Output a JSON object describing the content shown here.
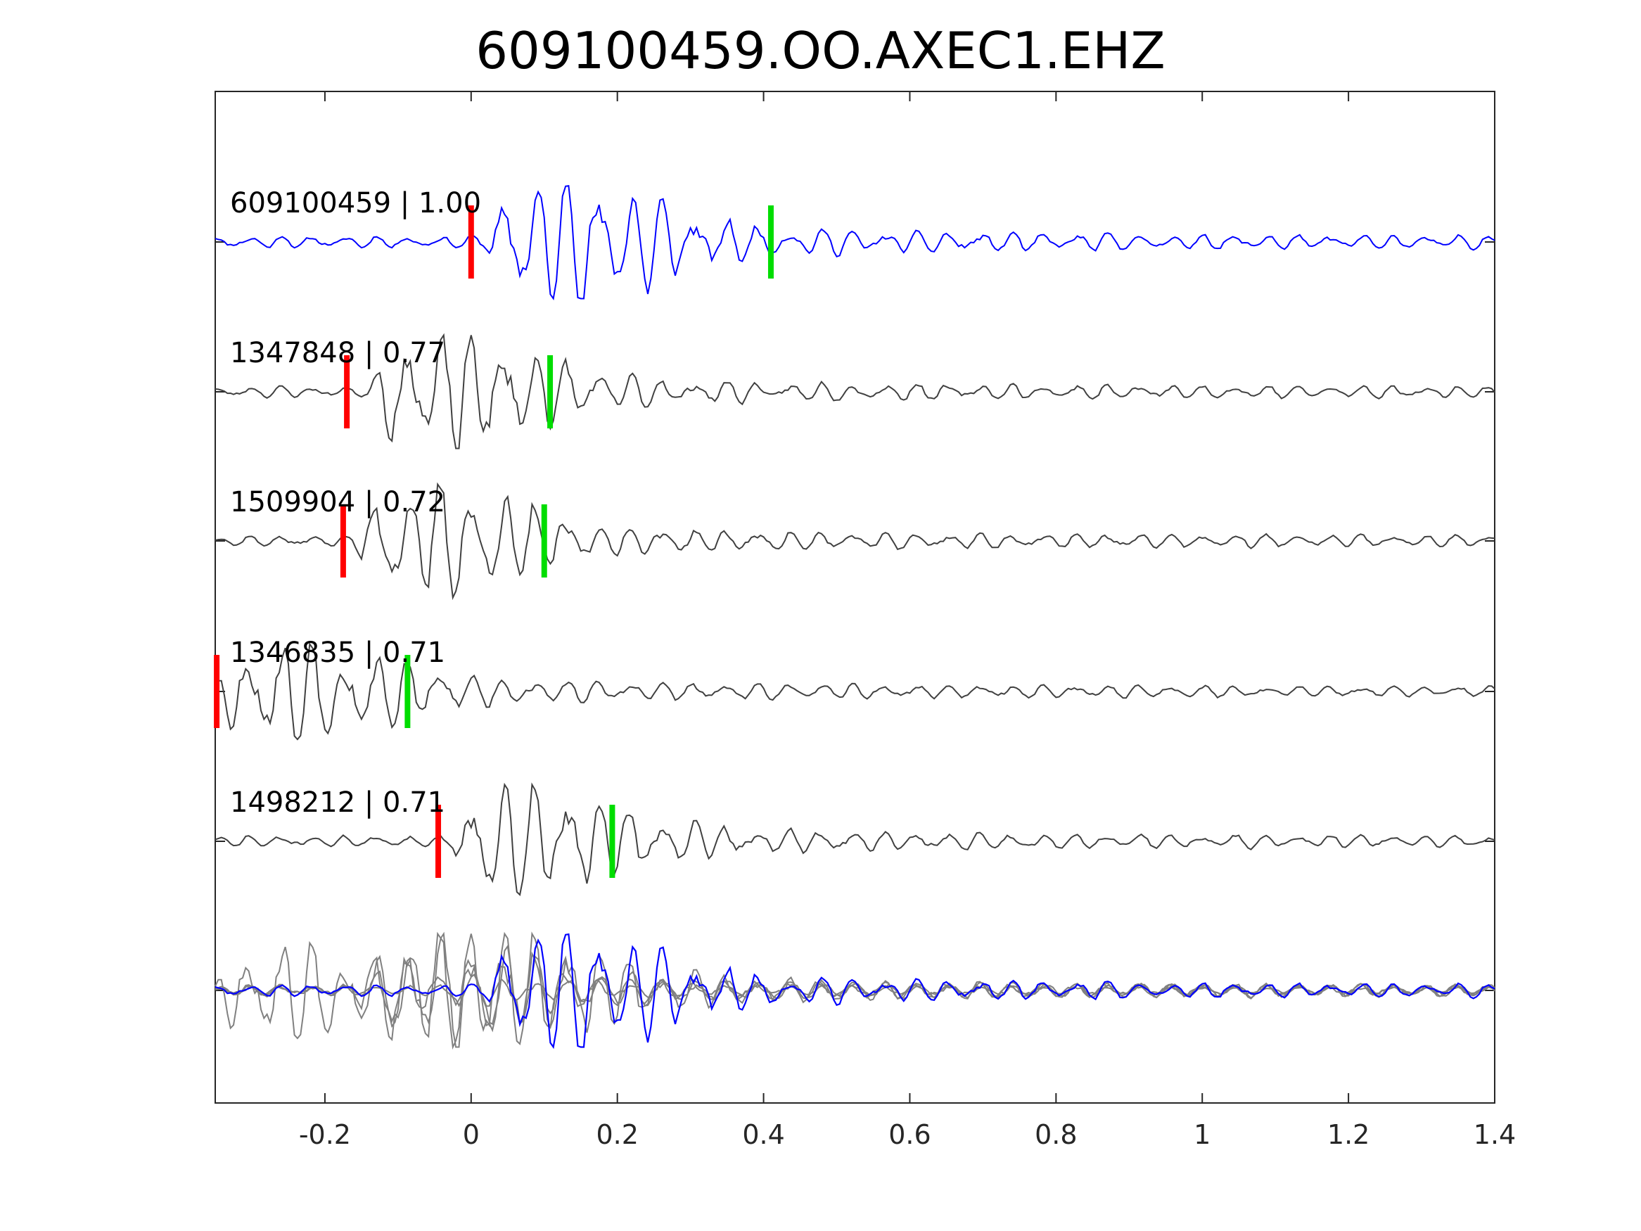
{
  "chart_data": {
    "type": "line",
    "title": "609100459.OO.AXEC1.EHZ",
    "xlabel": "",
    "ylabel": "",
    "xlim": [
      -0.35,
      1.4
    ],
    "xticks": [
      -0.2,
      0,
      0.2,
      0.4,
      0.6,
      0.8,
      1,
      1.2,
      1.4
    ],
    "xtick_labels": [
      "-0.2",
      "0",
      "0.2",
      "0.4",
      "0.6",
      "0.8",
      "1",
      "1.2",
      "1.4"
    ],
    "grid": false,
    "legend": "none",
    "colors": {
      "primary_trace": "#0000ff",
      "other_traces": "#404040",
      "overlay_traces": "#808080",
      "p_marker": "#ff0000",
      "s_marker": "#00dd00",
      "axes": "#262626"
    },
    "series": [
      {
        "name": "609100459",
        "label": "609100459 | 1.00",
        "event_id": "609100459",
        "correlation": 1.0,
        "primary": true,
        "p_pick": 0.0,
        "s_pick": 0.41,
        "signal_start": 0.02,
        "amp": 1.0,
        "seed": 11
      },
      {
        "name": "1347848",
        "label": "1347848 | 0.77",
        "event_id": "1347848",
        "correlation": 0.77,
        "primary": false,
        "p_pick": -0.17,
        "s_pick": 0.108,
        "signal_start": -0.14,
        "amp": 0.9,
        "seed": 23
      },
      {
        "name": "1509904",
        "label": "1509904 | 0.72",
        "event_id": "1509904",
        "correlation": 0.72,
        "primary": false,
        "p_pick": -0.175,
        "s_pick": 0.1,
        "signal_start": -0.16,
        "amp": 0.9,
        "seed": 37
      },
      {
        "name": "1346835",
        "label": "1346835 | 0.71",
        "event_id": "1346835",
        "correlation": 0.71,
        "primary": false,
        "p_pick": -0.348,
        "s_pick": -0.087,
        "signal_start": -0.35,
        "amp": 0.85,
        "seed": 53
      },
      {
        "name": "1498212",
        "label": "1498212 | 0.71",
        "event_id": "1498212",
        "correlation": 0.71,
        "primary": false,
        "p_pick": -0.045,
        "s_pick": 0.193,
        "signal_start": -0.03,
        "amp": 0.9,
        "seed": 71
      }
    ],
    "overlay": {
      "description_visible": false,
      "includes_all_series": true
    }
  }
}
